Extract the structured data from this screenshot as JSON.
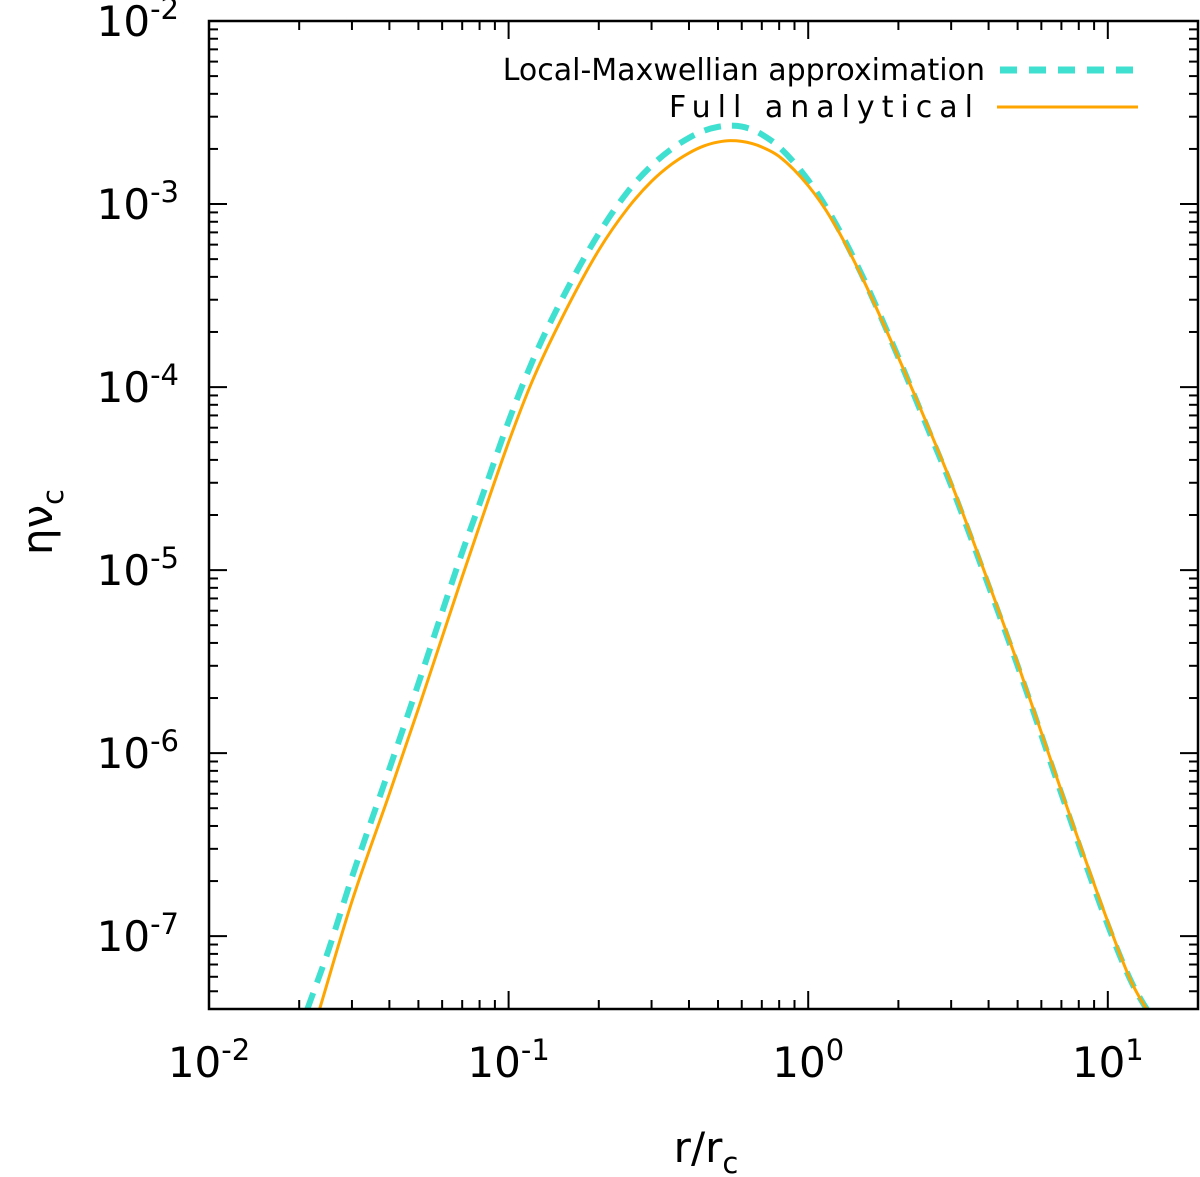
{
  "chart_data": {
    "type": "line",
    "xscale": "log",
    "yscale": "log",
    "xlim": [
      0.01,
      20
    ],
    "ylim": [
      4e-08,
      0.01
    ],
    "xlabel": {
      "main": "r/r",
      "sub": "c"
    },
    "ylabel": {
      "main": "ην",
      "sub": "c"
    },
    "x_ticks": [
      {
        "base": "10",
        "exp": "-2",
        "value": 0.01
      },
      {
        "base": "10",
        "exp": "-1",
        "value": 0.1
      },
      {
        "base": "10",
        "exp": "0",
        "value": 1
      },
      {
        "base": "10",
        "exp": "1",
        "value": 10
      }
    ],
    "y_ticks": [
      {
        "base": "10",
        "exp": "-7",
        "value": 1e-07
      },
      {
        "base": "10",
        "exp": "-6",
        "value": 1e-06
      },
      {
        "base": "10",
        "exp": "-5",
        "value": 1e-05
      },
      {
        "base": "10",
        "exp": "-4",
        "value": 0.0001
      },
      {
        "base": "10",
        "exp": "-3",
        "value": 0.001
      },
      {
        "base": "10",
        "exp": "-2",
        "value": 0.01
      }
    ],
    "legend_position": "top-right",
    "series": [
      {
        "name": "Local-Maxwellian approximation",
        "color": "#40e0d0",
        "style": "dashed",
        "x": [
          0.0213,
          0.025,
          0.03,
          0.04,
          0.05,
          0.06,
          0.07,
          0.08,
          0.1,
          0.12,
          0.15,
          0.2,
          0.25,
          0.3,
          0.35,
          0.4,
          0.45,
          0.5,
          0.55,
          0.6,
          0.65,
          0.7,
          0.8,
          1.0,
          1.2,
          1.5,
          2.0,
          2.5,
          3.0,
          4.0,
          5.0,
          7.0,
          10.0,
          12.0,
          14.0
        ],
        "y": [
          4e-08,
          8.3e-08,
          2.1e-07,
          8.2e-07,
          2.4e-06,
          5.9e-06,
          1.25e-05,
          2.3e-05,
          6.5e-05,
          0.000138,
          0.000298,
          0.00069,
          0.00117,
          0.00162,
          0.002,
          0.0023,
          0.00252,
          0.00264,
          0.00268,
          0.00265,
          0.00255,
          0.0024,
          0.00205,
          0.00135,
          0.00085,
          0.00042,
          0.000145,
          6e-05,
          2.9e-05,
          8.2e-06,
          3e-06,
          6e-07,
          1.15e-07,
          5.6e-08,
          3.6e-08
        ]
      },
      {
        "name": "Full analytical",
        "color": "#ffa500",
        "style": "solid",
        "x": [
          0.0234,
          0.03,
          0.04,
          0.05,
          0.06,
          0.07,
          0.08,
          0.1,
          0.12,
          0.15,
          0.2,
          0.25,
          0.3,
          0.35,
          0.4,
          0.45,
          0.5,
          0.55,
          0.6,
          0.65,
          0.7,
          0.8,
          1.0,
          1.2,
          1.5,
          2.0,
          2.5,
          3.0,
          4.0,
          5.0,
          7.0,
          10.0,
          12.0,
          14.3
        ],
        "y": [
          4e-08,
          1.55e-07,
          6e-07,
          1.75e-06,
          4.3e-06,
          9.2e-06,
          1.75e-05,
          5e-05,
          0.000108,
          0.000235,
          0.00056,
          0.00095,
          0.00133,
          0.00165,
          0.0019,
          0.00208,
          0.00218,
          0.00222,
          0.0022,
          0.00214,
          0.00205,
          0.00182,
          0.00126,
          0.00082,
          0.00041,
          0.000145,
          6.2e-05,
          3e-05,
          8.5e-06,
          3.1e-06,
          6.2e-07,
          1.2e-07,
          5.6e-08,
          3.4e-08
        ]
      }
    ]
  }
}
